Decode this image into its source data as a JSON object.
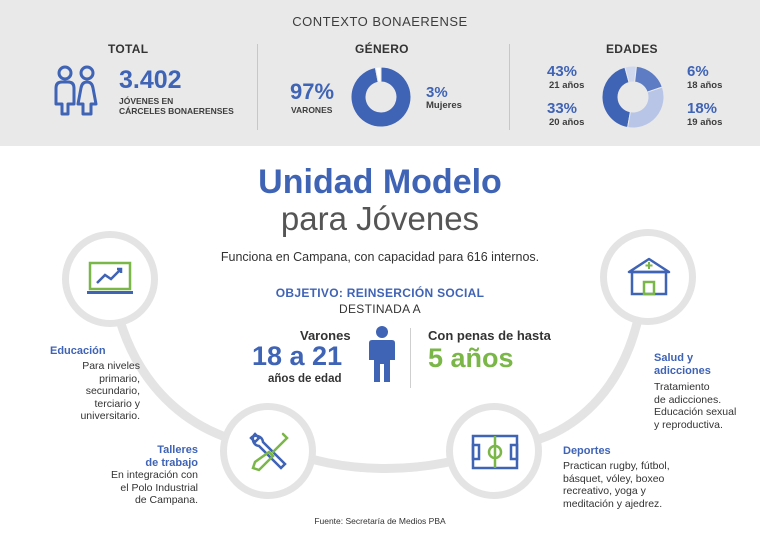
{
  "context": {
    "title": "CONTEXTO BONAERENSE",
    "total": {
      "heading": "TOTAL",
      "value": "3.402",
      "caption_line1": "JÓVENES EN",
      "caption_line2": "CÁRCELES BONAERENSES",
      "icon": "people-icon"
    },
    "genero": {
      "heading": "GÉNERO",
      "male_pct": "97%",
      "male_label": "VARONES",
      "female_pct": "3%",
      "female_label": "Mujeres",
      "values": [
        97,
        3
      ],
      "colors": [
        "#3f63b5",
        "#ffffff"
      ]
    },
    "edades": {
      "heading": "EDADES",
      "items": [
        {
          "pct": "43%",
          "label": "21 años",
          "value": 43,
          "color": "#3f63b5"
        },
        {
          "pct": "6%",
          "label": "18 años",
          "value": 6,
          "color": "#cfd8ee"
        },
        {
          "pct": "18%",
          "label": "19 años",
          "value": 18,
          "color": "#5d7cc4"
        },
        {
          "pct": "33%",
          "label": "20 años",
          "value": 33,
          "color": "#b8c5e6"
        }
      ]
    }
  },
  "main": {
    "title": "Unidad Modelo",
    "subtitle": "para Jóvenes",
    "description": "Funciona en Campana, con capacidad para 616 internos.",
    "objective": "OBJETIVO: REINSERCIÓN SOCIAL",
    "destined": "DESTINADA A",
    "varones_label": "Varones",
    "age_range": "18 a 21",
    "age_caption": "años de edad",
    "penalty_label": "Con penas de hasta",
    "penalty_value": "5 años",
    "person_icon": "person-icon"
  },
  "features": {
    "educacion": {
      "title": "Educación",
      "lines": [
        "Para niveles",
        "primario,",
        "secundario,",
        "terciario y",
        "universitario."
      ],
      "icon": "chart-monitor-icon"
    },
    "talleres": {
      "title_line1": "Talleres",
      "title_line2": "de trabajo",
      "lines": [
        "En integración con",
        "el Polo Industrial",
        "de Campana."
      ],
      "icon": "tools-icon"
    },
    "deportes": {
      "title": "Deportes",
      "lines": [
        "Practican rugby, fútbol,",
        "básquet, vóley, boxeo",
        "recreativo, yoga y",
        "meditación y ajedrez."
      ],
      "icon": "sports-field-icon"
    },
    "salud": {
      "title_line1": "Salud y",
      "title_line2": "adicciones",
      "lines": [
        "Tratamiento",
        "de adicciones.",
        "Educación sexual",
        "y reproductiva."
      ],
      "icon": "health-house-icon"
    }
  },
  "colors": {
    "blue": "#3f63b5",
    "green": "#7ab648",
    "gray_band": "#e9e9e9",
    "ring": "#e4e4e4"
  },
  "source": "Fuente: Secretaría de Medios PBA"
}
